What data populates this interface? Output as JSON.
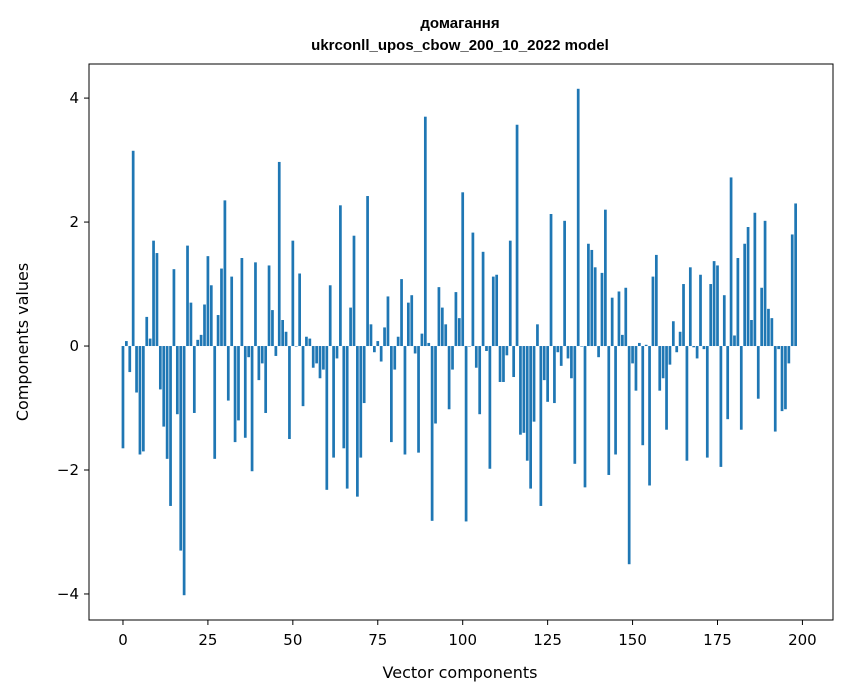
{
  "chart_data": {
    "type": "bar",
    "title_line1": "домагання",
    "title_line2": "ukrconll_upos_cbow_200_10_2022 model",
    "xlabel": "Vector components",
    "ylabel": "Components values",
    "xlim": [
      -10,
      209
    ],
    "ylim": [
      -4.42,
      4.55
    ],
    "xticks": [
      0,
      25,
      50,
      75,
      100,
      125,
      150,
      175,
      200
    ],
    "yticks": [
      -4,
      -2,
      0,
      2,
      4
    ],
    "ytick_labels": [
      "−4",
      "−2",
      "0",
      "2",
      "4"
    ],
    "grid": false,
    "bar_color": "#1f77b4",
    "values": [
      -1.65,
      0.08,
      -0.42,
      3.15,
      -0.75,
      -1.75,
      -1.7,
      0.47,
      0.12,
      1.7,
      1.5,
      -0.7,
      -1.3,
      -1.82,
      -2.58,
      1.24,
      -1.1,
      -3.3,
      -4.02,
      1.62,
      0.7,
      -1.08,
      0.1,
      0.18,
      0.67,
      1.45,
      0.98,
      -1.82,
      0.5,
      1.25,
      2.35,
      -0.88,
      1.12,
      -1.55,
      -1.2,
      1.42,
      -1.48,
      -0.18,
      -2.02,
      1.35,
      -0.55,
      -0.28,
      -1.08,
      1.3,
      0.58,
      -0.16,
      2.97,
      0.42,
      0.23,
      -1.5,
      1.7,
      0.0,
      1.17,
      -0.97,
      0.15,
      0.12,
      -0.35,
      -0.28,
      -0.52,
      -0.38,
      -2.32,
      0.98,
      -1.8,
      -0.2,
      2.27,
      -1.65,
      -2.3,
      0.62,
      1.78,
      -2.43,
      -1.8,
      -0.92,
      2.42,
      0.35,
      -0.1,
      0.08,
      -0.25,
      0.3,
      0.8,
      -1.55,
      -0.38,
      0.15,
      1.08,
      -1.75,
      0.7,
      0.82,
      -0.12,
      -1.72,
      0.2,
      3.7,
      0.05,
      -2.82,
      -1.25,
      0.95,
      0.62,
      0.35,
      -1.02,
      -0.38,
      0.87,
      0.45,
      2.48,
      -2.83,
      0.0,
      1.83,
      -0.35,
      -1.1,
      1.52,
      -0.08,
      -1.98,
      1.12,
      1.15,
      -0.58,
      -0.58,
      -0.15,
      1.7,
      -0.5,
      3.57,
      -1.43,
      -1.4,
      -1.85,
      -2.3,
      -1.22,
      0.35,
      -2.58,
      -0.55,
      -0.9,
      2.13,
      -0.92,
      -0.1,
      -0.32,
      2.02,
      -0.2,
      -0.52,
      -1.9,
      4.15,
      0.0,
      -2.28,
      1.65,
      1.55,
      1.27,
      -0.18,
      1.18,
      2.2,
      -2.08,
      0.78,
      -1.75,
      0.88,
      0.18,
      0.94,
      -3.52,
      -0.28,
      -0.72,
      0.05,
      -1.6,
      0.02,
      -2.25,
      1.12,
      1.47,
      -0.72,
      -0.52,
      -1.35,
      -0.3,
      0.4,
      -0.1,
      0.23,
      1.0,
      -1.85,
      1.27,
      -0.02,
      -0.2,
      1.15,
      -0.05,
      -1.8,
      1.0,
      1.37,
      1.3,
      -1.95,
      0.82,
      -1.18,
      2.72,
      0.17,
      1.42,
      -1.35,
      1.65,
      1.92,
      0.42,
      2.15,
      -0.85,
      0.94,
      2.02,
      0.6,
      0.45,
      -1.38,
      -0.05,
      -1.05,
      -1.02,
      -0.28,
      1.8,
      2.3
    ]
  }
}
